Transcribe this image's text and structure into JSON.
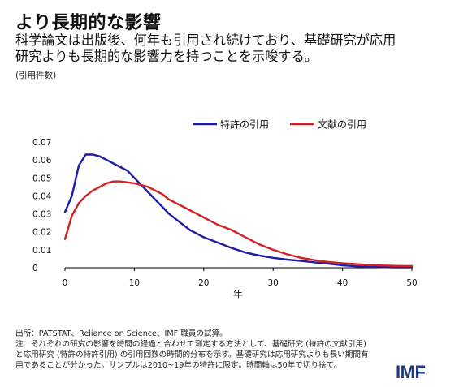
{
  "title": "より長期的な影響",
  "subtitle_line1": "科学論文は出版後、何年も引用され続けており、基礎研究が応用",
  "subtitle_line2": "研究よりも長期的な影響力を持つことを示唆する。",
  "unit_label": "(引用件数)",
  "source": "出所：PATSTAT、Reliance on Science、IMF 職員の試算。",
  "note_line1": "注：それぞれの研究の影響を時間の経過と合わせて測定する方法として、基礎研究 (特許の文献引用)",
  "note_line2": "と応用研究 (特許の特許引用) の引用回数の時間的分布を示す。基礎研究は応用研究よりも長い期間有",
  "note_line3": "用であることが分かった。サンプルは2010~19年の特許に限定。時間軸は50年で切り捨て。",
  "logo": "IMF",
  "colors": {
    "patent": "#1f1aa8",
    "literature": "#d42020",
    "axis": "#000000"
  },
  "chart_data": {
    "type": "line",
    "xlabel": "年",
    "ylabel": "(引用件数)",
    "xlim": [
      0,
      50
    ],
    "ylim": [
      0,
      0.07
    ],
    "xticks": [
      "0",
      "10",
      "20",
      "30",
      "40",
      "50"
    ],
    "yticks": [
      "0",
      "0.01",
      "0.02",
      "0.03",
      "0.04",
      "0.05",
      "0.06",
      "0.07"
    ],
    "legend_position": "top-center",
    "series": [
      {
        "name": "特許の引用",
        "color": "#1f1aa8",
        "x": [
          0,
          1,
          2,
          3,
          4,
          5,
          6,
          7,
          8,
          9,
          10,
          11,
          12,
          13,
          14,
          15,
          16,
          17,
          18,
          19,
          20,
          22,
          24,
          26,
          28,
          30,
          32,
          34,
          36,
          38,
          40,
          42,
          44,
          46,
          48,
          50
        ],
        "values": [
          0.031,
          0.04,
          0.057,
          0.063,
          0.063,
          0.062,
          0.06,
          0.058,
          0.056,
          0.054,
          0.05,
          0.046,
          0.042,
          0.038,
          0.034,
          0.03,
          0.027,
          0.024,
          0.021,
          0.019,
          0.017,
          0.014,
          0.011,
          0.0085,
          0.0068,
          0.0055,
          0.0045,
          0.0038,
          0.003,
          0.0022,
          0.0013,
          0.0008,
          0.0005,
          0.0003,
          0.0002,
          0.0002
        ]
      },
      {
        "name": "文献の引用",
        "color": "#d42020",
        "x": [
          0,
          1,
          2,
          3,
          4,
          5,
          6,
          7,
          8,
          9,
          10,
          11,
          12,
          13,
          14,
          15,
          16,
          17,
          18,
          19,
          20,
          22,
          24,
          26,
          28,
          30,
          32,
          34,
          36,
          38,
          40,
          42,
          44,
          46,
          48,
          50
        ],
        "values": [
          0.016,
          0.029,
          0.036,
          0.04,
          0.043,
          0.045,
          0.047,
          0.048,
          0.048,
          0.0475,
          0.047,
          0.046,
          0.045,
          0.043,
          0.041,
          0.038,
          0.036,
          0.034,
          0.032,
          0.03,
          0.028,
          0.024,
          0.021,
          0.017,
          0.013,
          0.01,
          0.0075,
          0.0055,
          0.0042,
          0.0032,
          0.0025,
          0.002,
          0.0015,
          0.0012,
          0.001,
          0.0009
        ]
      }
    ]
  }
}
